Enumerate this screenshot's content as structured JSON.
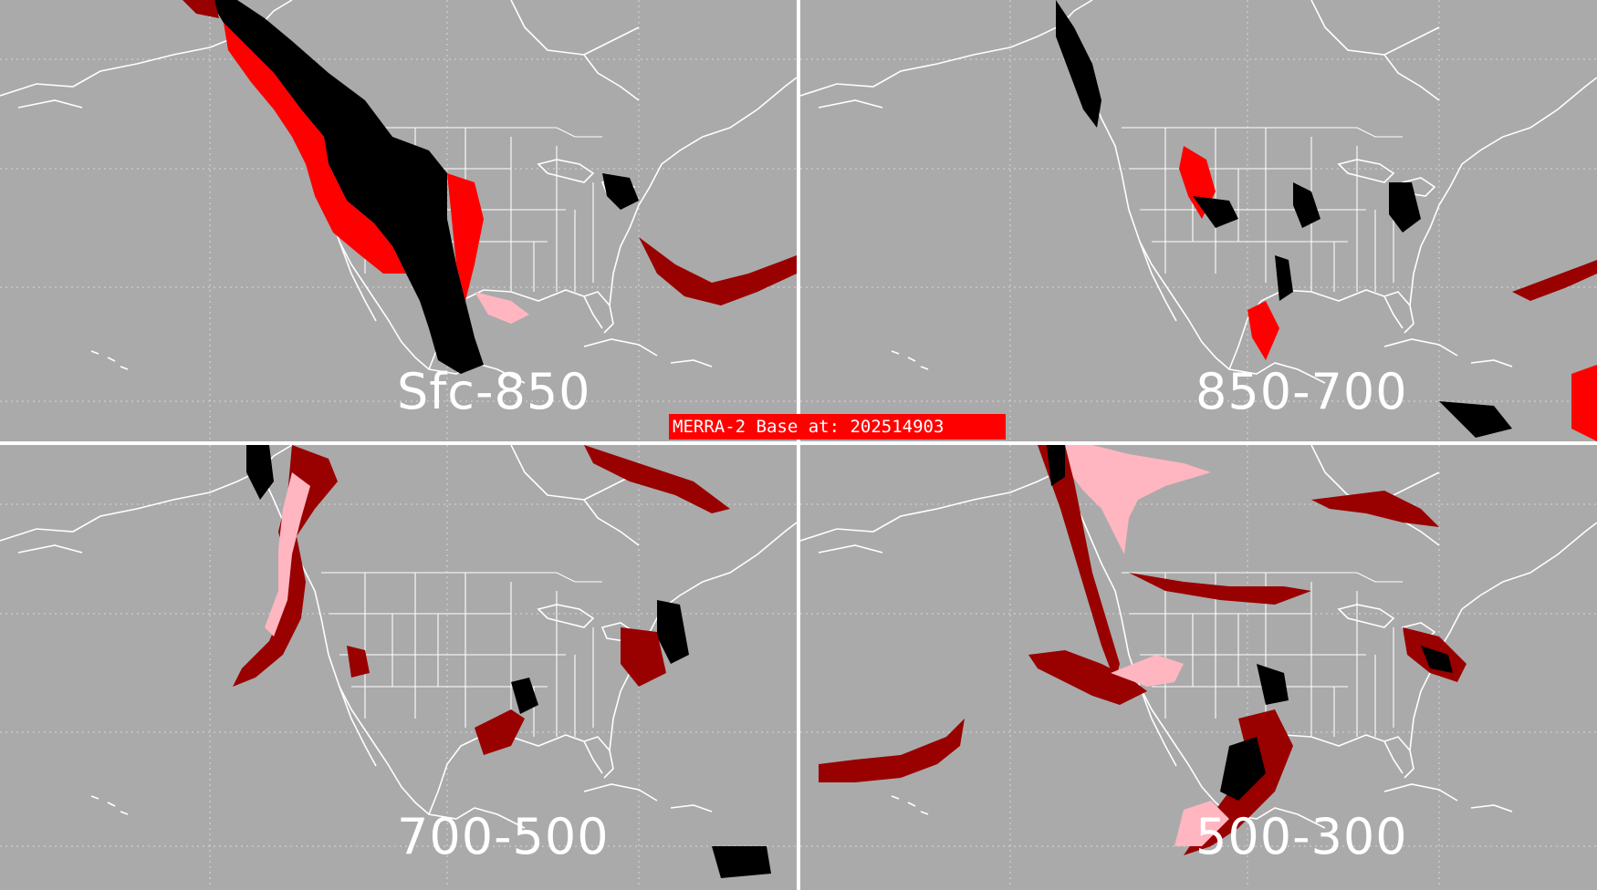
{
  "base_label": "MERRA-2 Base at: 202514903",
  "panels": [
    {
      "label": "Sfc-850"
    },
    {
      "label": "850-700"
    },
    {
      "label": "700-500"
    },
    {
      "label": "500-300"
    }
  ],
  "colors": {
    "background": "#aaaaaa",
    "outline": "#ffffff",
    "black": "#000000",
    "red": "#ff0000",
    "dark_red": "#990000",
    "pink": "#ffb6c1"
  }
}
